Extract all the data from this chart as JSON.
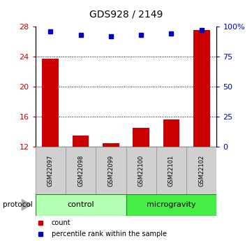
{
  "title": "GDS928 / 2149",
  "samples": [
    "GSM22097",
    "GSM22098",
    "GSM22099",
    "GSM22100",
    "GSM22101",
    "GSM22102"
  ],
  "bar_values": [
    23.7,
    13.5,
    12.5,
    14.5,
    15.7,
    27.5
  ],
  "bar_bottom": 12,
  "percentile_values": [
    96,
    93,
    92,
    93,
    94,
    97
  ],
  "ylim_left": [
    12,
    28
  ],
  "ylim_right": [
    0,
    100
  ],
  "yticks_left": [
    12,
    16,
    20,
    24,
    28
  ],
  "yticks_right": [
    0,
    25,
    50,
    75,
    100
  ],
  "ytick_labels_right": [
    "0",
    "25",
    "50",
    "75",
    "100%"
  ],
  "bar_color": "#cc0000",
  "marker_color": "#0000cc",
  "groups": [
    {
      "label": "control",
      "start": 0,
      "end": 3,
      "color": "#b3ffb3"
    },
    {
      "label": "microgravity",
      "start": 3,
      "end": 6,
      "color": "#44ee44"
    }
  ],
  "protocol_label": "protocol",
  "legend_count": "count",
  "legend_percentile": "percentile rank within the sample",
  "grid_dotted_at": [
    16,
    20,
    24
  ],
  "title_fontsize": 10,
  "tick_fontsize": 8,
  "sample_fontsize": 6,
  "group_fontsize": 8,
  "legend_fontsize": 7
}
